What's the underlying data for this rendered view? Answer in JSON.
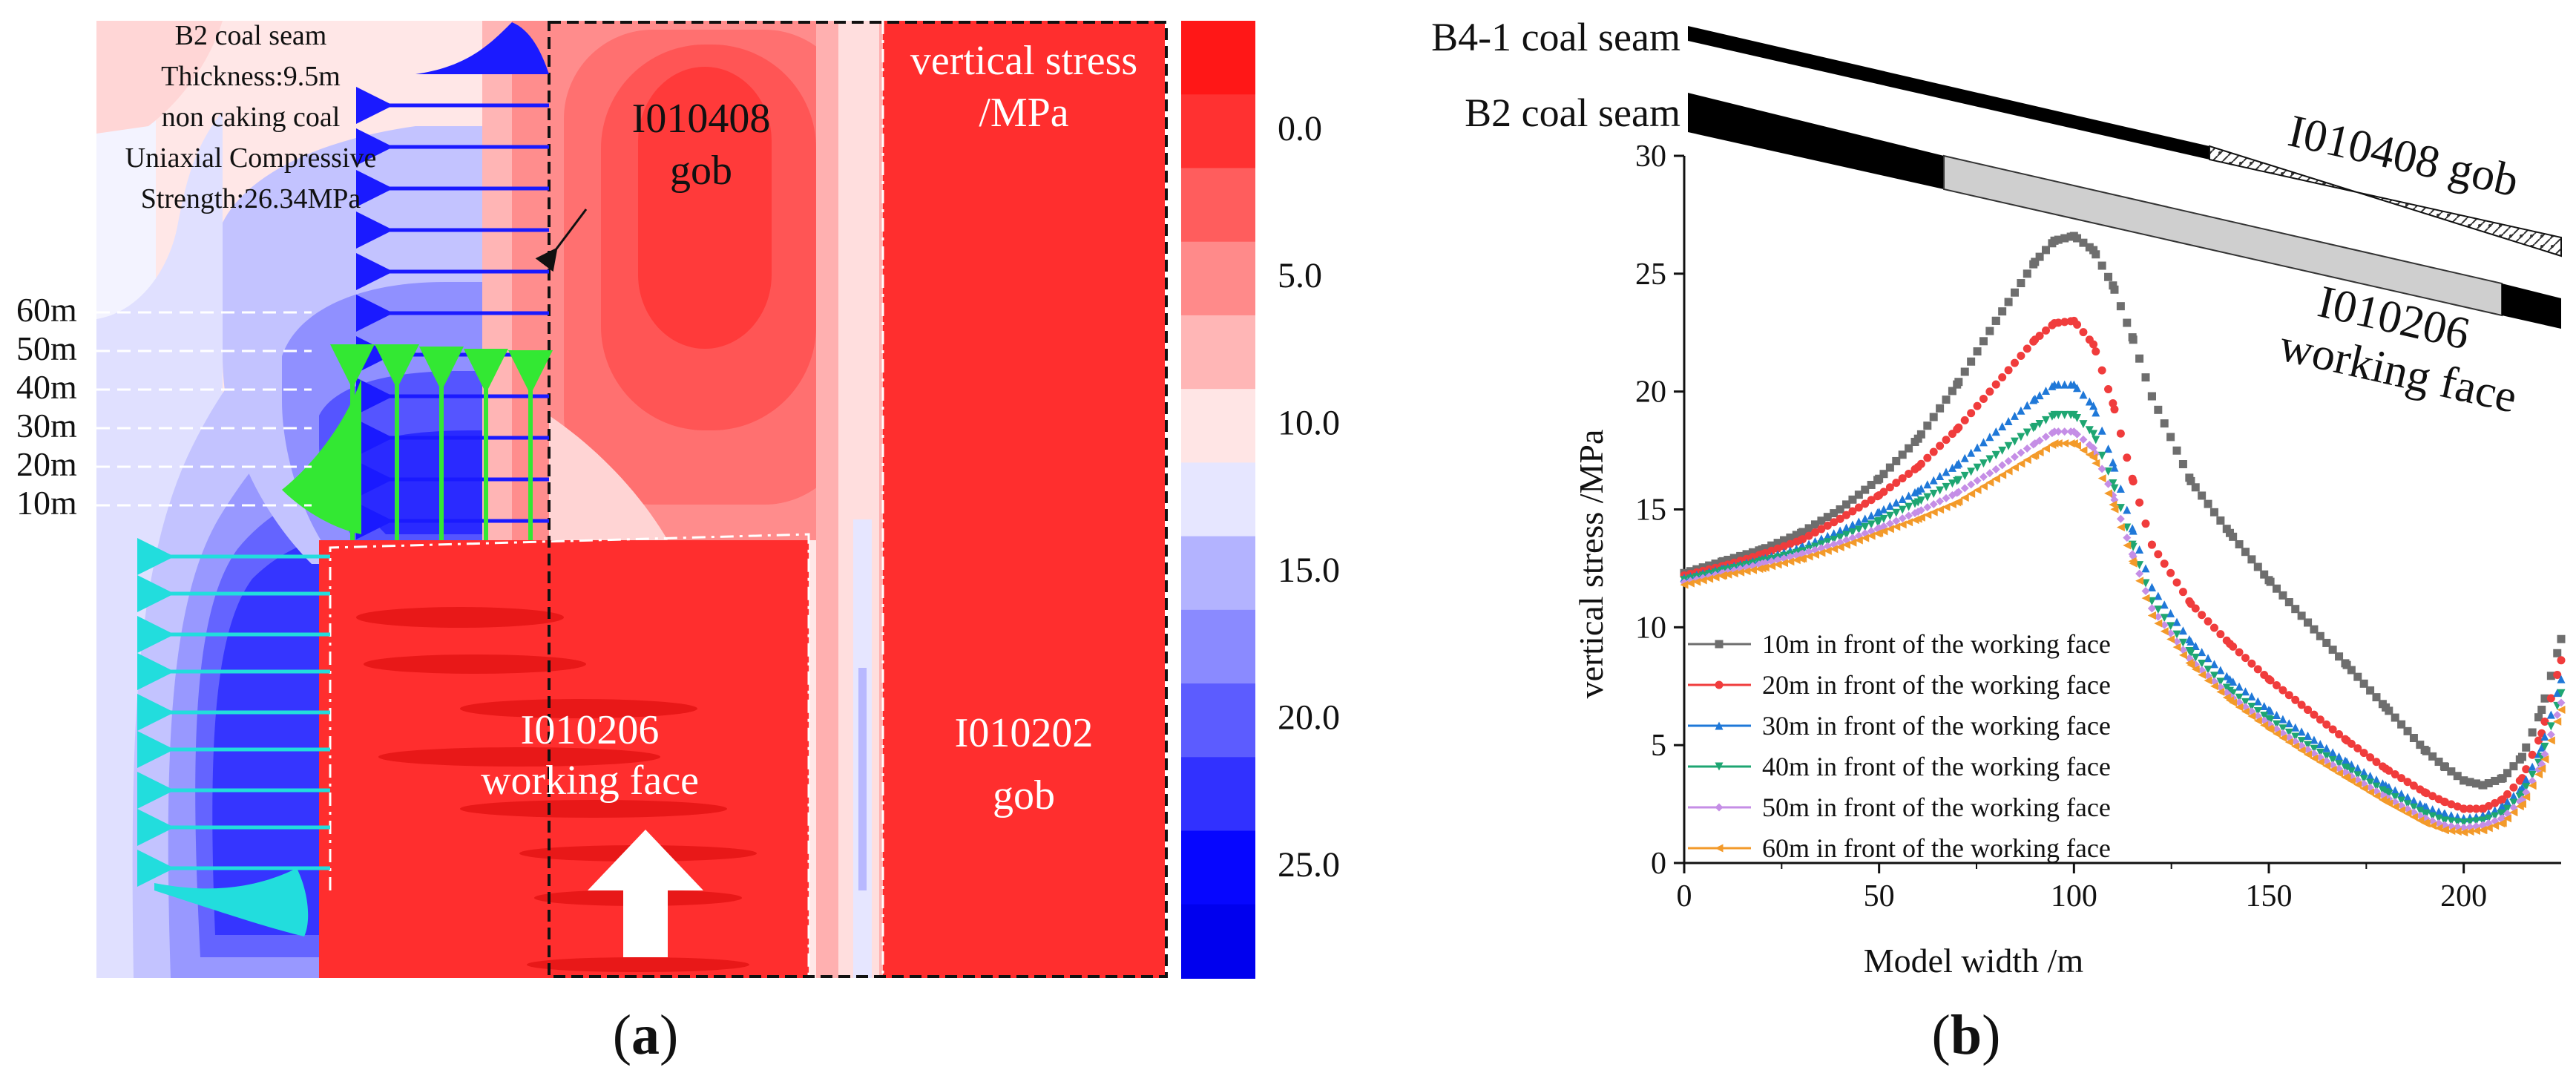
{
  "colors": {
    "red": "#ff2a2a",
    "blue": "#1a1aff",
    "green": "#33e833",
    "cyan": "#22dddd",
    "gob_fill": "#ff3030",
    "series_colors": [
      "#6e6e6e",
      "#f03c3c",
      "#1f78d8",
      "#1ea672",
      "#c58ee6",
      "#f39a2a"
    ]
  },
  "panel_a": {
    "label_open": "(",
    "label_letter": "a",
    "label_close": ")",
    "seam_info": [
      "B2 coal seam",
      "Thickness:9.5m",
      "non caking coal",
      "Uniaxial Compressive",
      "Strength:26.34MPa"
    ],
    "distance_labels": [
      "60m",
      "50m",
      "40m",
      "30m",
      "20m",
      "10m"
    ],
    "region_labels": {
      "gob_top": [
        "I010408",
        "gob"
      ],
      "working_face": [
        "I010206",
        "working face"
      ],
      "gob_right": [
        "I010202",
        "gob"
      ],
      "stress_title": [
        "vertical stress",
        "/MPa"
      ]
    },
    "colorbar": {
      "colors": [
        "#ff1717",
        "#ff3131",
        "#ff5d5d",
        "#ff8a8a",
        "#ffb6b6",
        "#ffe5e5",
        "#e6e6ff",
        "#b3b3ff",
        "#8a8aff",
        "#5c5cff",
        "#3131ff",
        "#0606ff",
        "#0000ee"
      ],
      "tick_labels": [
        "0.0",
        "5.0",
        "10.0",
        "15.0",
        "20.0",
        "25.0"
      ]
    }
  },
  "panel_b": {
    "label_open": "(",
    "label_letter": "b",
    "label_close": ")",
    "seam_labels": [
      "B4-1 coal seam",
      "B2 coal seam"
    ],
    "gob_label": "I010408 gob",
    "working_face_label": [
      "I010206",
      "working face"
    ]
  },
  "chart_data": {
    "type": "line",
    "title": "",
    "xlabel": "Model width /m",
    "ylabel": "vertical stress /MPa",
    "xlim": [
      0,
      225
    ],
    "ylim": [
      0,
      30
    ],
    "xticks": [
      0,
      50,
      100,
      150,
      200
    ],
    "yticks": [
      0,
      5,
      10,
      15,
      20,
      25,
      30
    ],
    "x": [
      0,
      10,
      20,
      30,
      40,
      50,
      60,
      70,
      80,
      90,
      95,
      100,
      105,
      110,
      115,
      120,
      130,
      140,
      150,
      160,
      170,
      180,
      190,
      195,
      200,
      205,
      210,
      215,
      220,
      225
    ],
    "series": [
      {
        "name": "10m in front of the working face",
        "marker": "square",
        "values": [
          12.3,
          12.8,
          13.3,
          14.0,
          15.0,
          16.3,
          18.0,
          20.3,
          23.0,
          25.5,
          26.4,
          26.6,
          26.0,
          24.5,
          22.3,
          19.8,
          16.2,
          14.0,
          12.0,
          10.2,
          8.4,
          6.6,
          4.8,
          4.1,
          3.5,
          3.3,
          3.6,
          4.5,
          6.5,
          9.5
        ]
      },
      {
        "name": "20m in front of the working face",
        "marker": "circle",
        "values": [
          12.2,
          12.6,
          13.1,
          13.7,
          14.6,
          15.6,
          16.8,
          18.4,
          20.3,
          22.2,
          22.9,
          23.0,
          22.0,
          19.5,
          16.3,
          13.5,
          11.0,
          9.3,
          7.8,
          6.5,
          5.2,
          4.0,
          3.0,
          2.6,
          2.3,
          2.3,
          2.7,
          3.6,
          5.5,
          8.6
        ]
      },
      {
        "name": "30m in front of the working face",
        "marker": "triangle",
        "values": [
          12.1,
          12.5,
          12.9,
          13.4,
          14.1,
          14.9,
          15.8,
          16.9,
          18.3,
          19.7,
          20.3,
          20.3,
          19.4,
          17.0,
          14.2,
          11.7,
          9.4,
          7.8,
          6.5,
          5.4,
          4.3,
          3.3,
          2.4,
          2.1,
          1.9,
          2.0,
          2.4,
          3.2,
          4.9,
          7.8
        ]
      },
      {
        "name": "40m in front of the working face",
        "marker": "triangle-down",
        "values": [
          12.0,
          12.4,
          12.8,
          13.2,
          13.8,
          14.5,
          15.3,
          16.2,
          17.3,
          18.5,
          19.0,
          19.0,
          18.2,
          16.1,
          13.5,
          11.1,
          8.9,
          7.3,
          6.1,
          5.0,
          4.0,
          3.0,
          2.1,
          1.8,
          1.7,
          1.8,
          2.1,
          2.9,
          4.5,
          7.2
        ]
      },
      {
        "name": "50m in front of the working face",
        "marker": "diamond",
        "values": [
          11.9,
          12.3,
          12.7,
          13.1,
          13.6,
          14.2,
          14.9,
          15.7,
          16.7,
          17.8,
          18.3,
          18.3,
          17.6,
          15.6,
          13.1,
          10.8,
          8.6,
          7.1,
          5.9,
          4.8,
          3.8,
          2.8,
          1.9,
          1.6,
          1.5,
          1.6,
          1.9,
          2.7,
          4.2,
          6.8
        ]
      },
      {
        "name": "60m in front of the working face",
        "marker": "triangle-left",
        "values": [
          11.8,
          12.2,
          12.5,
          12.9,
          13.4,
          14.0,
          14.6,
          15.3,
          16.3,
          17.3,
          17.8,
          17.8,
          17.2,
          15.2,
          12.8,
          10.5,
          8.4,
          6.9,
          5.7,
          4.6,
          3.6,
          2.6,
          1.7,
          1.4,
          1.3,
          1.4,
          1.7,
          2.5,
          4.0,
          6.5
        ]
      }
    ]
  }
}
